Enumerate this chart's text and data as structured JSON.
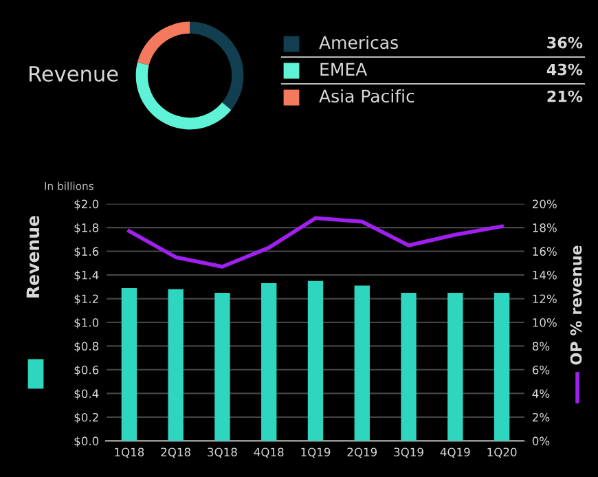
{
  "chart_data": [
    {
      "type": "donut",
      "title": "Revenue",
      "categories": [
        "Americas",
        "EMEA",
        "Asia Pacific"
      ],
      "values": [
        36,
        43,
        21
      ],
      "colors": [
        "#123f4f",
        "#5ef2d6",
        "#f47a5e"
      ],
      "value_labels": [
        "36%",
        "43%",
        "21%"
      ],
      "legend": "right"
    },
    {
      "type": "bar",
      "categories": [
        "1Q18",
        "2Q18",
        "3Q18",
        "4Q18",
        "1Q19",
        "2Q19",
        "3Q19",
        "4Q19",
        "1Q20"
      ],
      "series": [
        {
          "type": "bar",
          "color": "#2ed6c0",
          "values": [
            1.29,
            1.28,
            1.25,
            1.33,
            1.35,
            1.31,
            1.25,
            1.25,
            1.25
          ]
        },
        {
          "type": "line",
          "axis": "y2",
          "color": "#a020f0",
          "values": [
            17.7,
            15.5,
            14.7,
            16.3,
            18.8,
            18.5,
            16.5,
            17.4,
            18.1
          ]
        }
      ],
      "ylabel": "Revenue",
      "y2label": "OP % revenue",
      "annotations": [
        "In billions"
      ],
      "ylim": [
        0,
        2.0
      ],
      "yticks": [
        {
          "value": 0,
          "label": "$0.0"
        },
        {
          "value": 0.2,
          "label": "$0.2"
        },
        {
          "value": 0.4,
          "label": "$0.4"
        },
        {
          "value": 0.6,
          "label": "$0.6"
        },
        {
          "value": 0.8,
          "label": "$0.8"
        },
        {
          "value": 1.0,
          "label": "$1.0"
        },
        {
          "value": 1.2,
          "label": "$1.2"
        },
        {
          "value": 1.4,
          "label": "$1.4"
        },
        {
          "value": 1.6,
          "label": "$1.6"
        },
        {
          "value": 1.8,
          "label": "$1.8"
        },
        {
          "value": 2.0,
          "label": "$2.0"
        }
      ],
      "y2lim": [
        0,
        20
      ],
      "y2ticks": [
        {
          "value": 0,
          "label": "0%"
        },
        {
          "value": 2,
          "label": "2%"
        },
        {
          "value": 4,
          "label": "4%"
        },
        {
          "value": 6,
          "label": "6%"
        },
        {
          "value": 8,
          "label": "8%"
        },
        {
          "value": 10,
          "label": "10%"
        },
        {
          "value": 12,
          "label": "12%"
        },
        {
          "value": 14,
          "label": "14%"
        },
        {
          "value": 16,
          "label": "16%"
        },
        {
          "value": 18,
          "label": "18%"
        },
        {
          "value": 20,
          "label": "20%"
        }
      ],
      "grid": "y",
      "marker": "none",
      "line_style": "solid"
    }
  ]
}
